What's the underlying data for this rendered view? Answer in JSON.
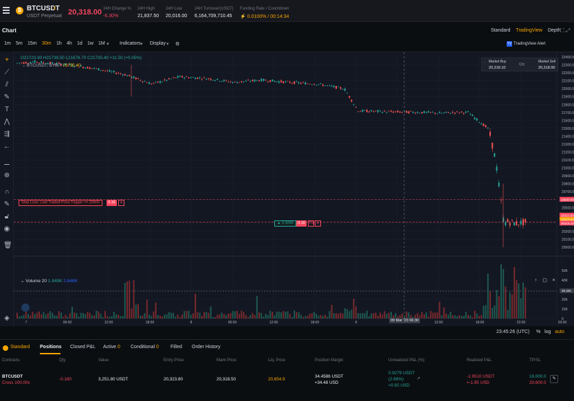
{
  "header": {
    "symbol": "BTCUSDT",
    "subtitle": "USDT Perpetual",
    "last_price": "20,318.00",
    "stats": [
      {
        "label": "24H Change %",
        "value": "-6.30%",
        "color": "red"
      },
      {
        "label": "24H High",
        "value": "21,837.50",
        "color": "white"
      },
      {
        "label": "24H Low",
        "value": "20,016.00",
        "color": "white"
      },
      {
        "label": "24H Turnover(USDT)",
        "value": "6,164,709,710.45",
        "color": "white"
      },
      {
        "label": "Funding Rate / Countdown",
        "value": "0.0100% / 00:14:34",
        "color": "orange"
      }
    ]
  },
  "chart_panel": {
    "title": "Chart",
    "view_tabs": [
      "Standard",
      "TradingView",
      "Depth"
    ],
    "active_view": "TradingView",
    "timeframes": [
      "1m",
      "5m",
      "15m",
      "30m",
      "1h",
      "4h",
      "1d",
      "1w",
      "1M"
    ],
    "active_timeframe": "30m",
    "indicators_label": "Indicators",
    "display_label": "Display",
    "tv_alert_label": "TradingView Alert"
  },
  "ohlc": {
    "line": "O21723.90  H21739.50  L21678.70  C21735.40  +11.50 (+0.05%)",
    "symbol_line": "BTCUSDT, BYBIT",
    "close": "21735.40"
  },
  "market_box": {
    "buy_label": "Market Buy",
    "buy_value": "20,318.10",
    "qty_label": "Qty",
    "sell_label": "Market Sell",
    "sell_value": "20,318.00"
  },
  "stop_loss": {
    "label": "Stop Loss: Last Traded Price Trigger >= 20600",
    "qty": "0.16"
  },
  "position_line": {
    "pnl": "0.9280",
    "qty": "0.16",
    "tp_label": "TS"
  },
  "volume": {
    "label": "Volume 20",
    "v1": "1.849K",
    "v2": "2.848K"
  },
  "price_axis": [
    "22400.00",
    "22300.00",
    "22200.00",
    "22100.00",
    "22000.00",
    "21900.00",
    "21800.00",
    "21700.00",
    "21600.00",
    "21500.00",
    "21400.00",
    "21300.00",
    "21200.00",
    "21100.00",
    "21000.00",
    "20900.00",
    "20800.00",
    "20700.00",
    "20600.00",
    "20500.00",
    "20400.00",
    "20300.00",
    "20200.00",
    "20100.00",
    "20000.00"
  ],
  "price_badges": {
    "stop": "20600.00",
    "a": "20323.60",
    "b": "20323.00",
    "c": "20318.10"
  },
  "vol_axis": [
    "50K",
    "40K",
    "30K",
    "20K",
    "10K",
    "0"
  ],
  "vol_badge": "30.32K",
  "time_axis": [
    "7",
    "06:00",
    "12:00",
    "18:00",
    "8",
    "06:00",
    "12:00",
    "18:00",
    "9",
    "06:30",
    "12:00",
    "18:00",
    "22:00",
    "03:00"
  ],
  "time_badge": "09 Mar '23   06:30",
  "clock": "23:45:26 (UTC)",
  "scale_opts": [
    "%",
    "log",
    "auto"
  ],
  "positions": {
    "tabs": [
      {
        "label": "Standard",
        "count": ""
      },
      {
        "label": "Positions",
        "count": ""
      },
      {
        "label": "Closed P&L",
        "count": ""
      },
      {
        "label": "Active",
        "count": "0"
      },
      {
        "label": "Conditional",
        "count": "0"
      },
      {
        "label": "Filled",
        "count": ""
      },
      {
        "label": "Order History",
        "count": ""
      }
    ],
    "columns": [
      "Contracts",
      "Qty",
      "Value",
      "Entry Price",
      "Mark Price",
      "Liq. Price",
      "Position Margin",
      "Unrealized P&L (%)",
      "Realized P&L",
      "TP/SL"
    ],
    "row": {
      "contract": "BTCUSDT",
      "mode": "Cross 100.00x",
      "qty": "-0.160",
      "value": "3,251.80 USDT",
      "entry": "20,323.80",
      "mark": "20,318.50",
      "liq": "20,654.9",
      "margin": "34.4586 USDT",
      "margin_usd": "≈34.48 USD",
      "upnl": "0.9279 USDT",
      "upnl_pct": "(2.69%)",
      "upnl_usd": "≈0.92 USD",
      "rpnl": "-1.9510 USDT",
      "rpnl_usd": "≈-1.95 USD",
      "tp": "18,000.0",
      "sl": "20,600.0"
    }
  },
  "colors": {
    "up": "#26a69a",
    "down": "#ef5350",
    "accent": "#f7a600",
    "bg": "#131722"
  }
}
